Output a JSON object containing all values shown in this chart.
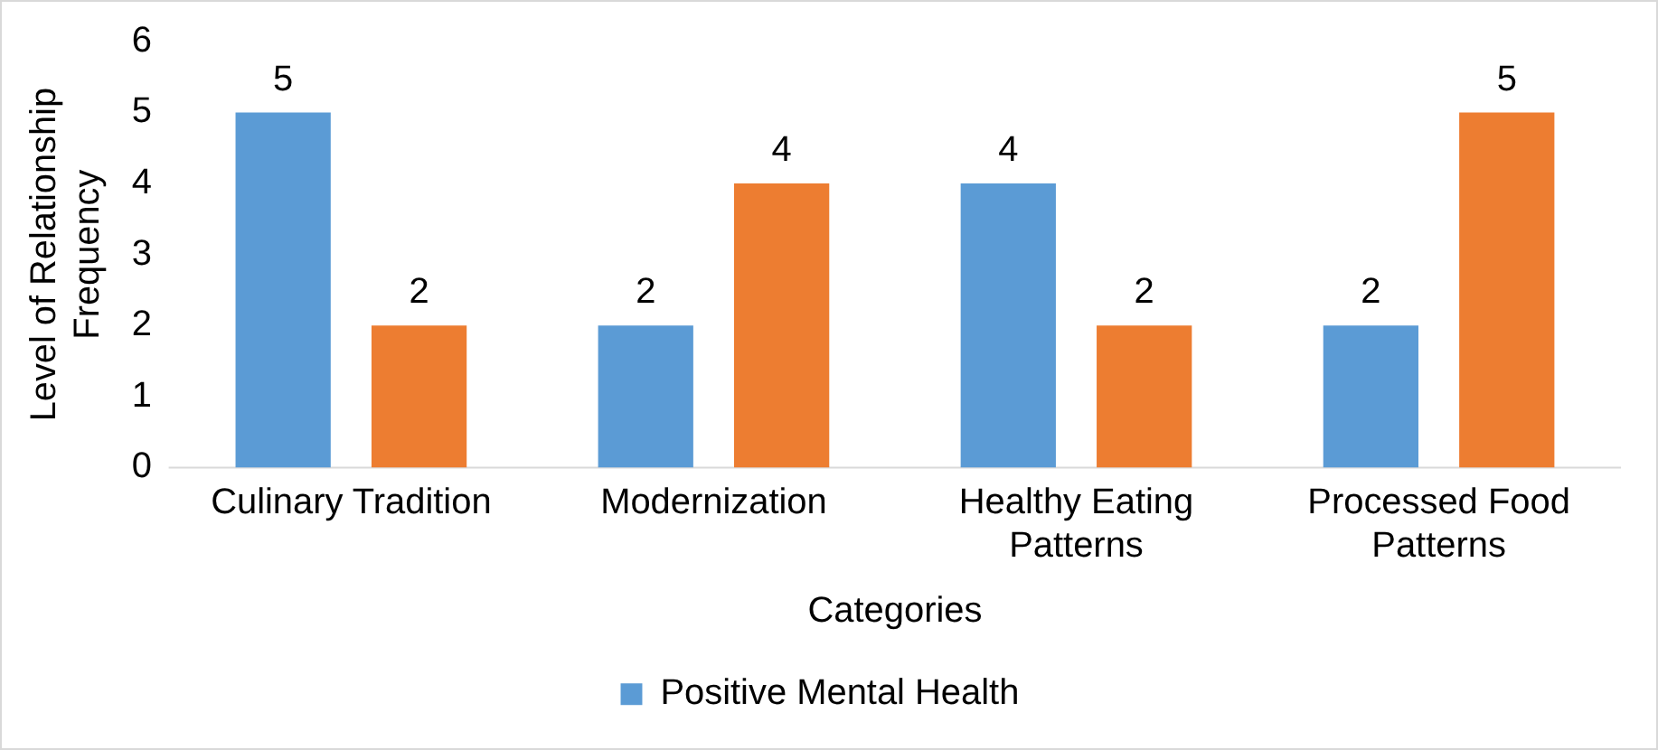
{
  "chart_data": {
    "type": "bar",
    "xlabel": "Categories",
    "ylabel": "Level of Relationship Frequency",
    "categories": [
      "Culinary Tradition",
      "Modernization",
      "Healthy Eating Patterns",
      "Processed Food Patterns"
    ],
    "series": [
      {
        "name": "Positive Mental Health",
        "color": "#5b9bd5",
        "values": [
          5,
          2,
          4,
          2
        ]
      },
      {
        "color": "#ed7d31",
        "values": [
          2,
          4,
          2,
          5
        ]
      }
    ],
    "ylim": [
      0,
      6
    ],
    "yticks": [
      0,
      1,
      2,
      3,
      4,
      5,
      6
    ],
    "grid": false,
    "legend": "bottom",
    "data_labels": true
  }
}
